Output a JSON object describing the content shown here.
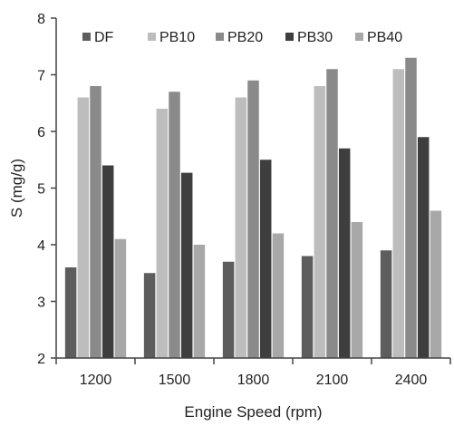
{
  "chart_data": {
    "type": "bar",
    "title": "",
    "xlabel": "Engine Speed (rpm)",
    "ylabel": "S (mg/g)",
    "categories": [
      "1200",
      "1500",
      "1800",
      "2100",
      "2400"
    ],
    "ylim": [
      2,
      8
    ],
    "yticks": [
      "2",
      "3",
      "4",
      "5",
      "6",
      "7",
      "8"
    ],
    "grid": false,
    "legend_position": "top",
    "series": [
      {
        "name": "DF",
        "color": "#5d5d5d",
        "values": [
          3.6,
          3.5,
          3.7,
          3.8,
          3.9
        ]
      },
      {
        "name": "PB10",
        "color": "#bdbdbd",
        "values": [
          6.6,
          6.4,
          6.6,
          6.8,
          7.1
        ]
      },
      {
        "name": "PB20",
        "color": "#8a8a8a",
        "values": [
          6.8,
          6.7,
          6.9,
          7.1,
          7.3
        ]
      },
      {
        "name": "PB30",
        "color": "#3e3e3e",
        "values": [
          5.4,
          5.27,
          5.5,
          5.7,
          5.9
        ]
      },
      {
        "name": "PB40",
        "color": "#a8a8a8",
        "values": [
          4.1,
          4.0,
          4.2,
          4.4,
          4.6
        ]
      }
    ]
  }
}
